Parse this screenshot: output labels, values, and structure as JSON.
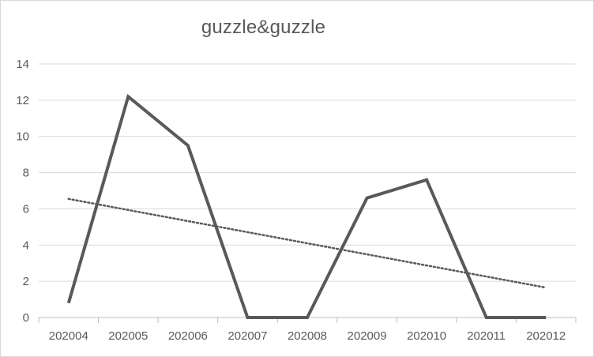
{
  "chart_data": {
    "type": "line",
    "title": "guzzle&guzzle",
    "xlabel": "",
    "ylabel": "",
    "categories": [
      "202004",
      "202005",
      "202006",
      "202007",
      "202008",
      "202009",
      "202010",
      "202011",
      "202012"
    ],
    "series": [
      {
        "values": [
          0.8,
          12.2,
          9.5,
          0,
          0,
          6.6,
          7.6,
          0,
          0
        ],
        "color": "#595959",
        "style": "solid"
      }
    ],
    "trendline": {
      "type": "linear",
      "style": "dotted",
      "color": "#595959",
      "start": 6.55,
      "end": 1.65
    },
    "ylim": [
      0,
      14
    ],
    "yticks": [
      0,
      2,
      4,
      6,
      8,
      10,
      12,
      14
    ],
    "grid": true,
    "legend": "none"
  }
}
